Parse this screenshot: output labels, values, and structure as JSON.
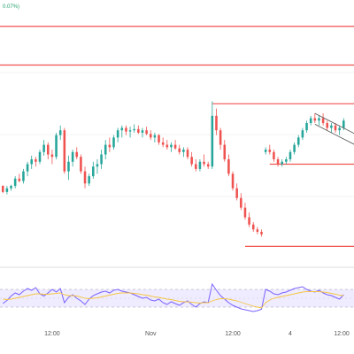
{
  "corner_label": "0.07%)",
  "chart_data": [
    {
      "type": "candlestick",
      "colors": {
        "up": "#26a69a",
        "down": "#ef5350",
        "level": "#ef5350",
        "channel": "#555555",
        "grid": "#e6e6e6"
      },
      "x_ticks": [
        "12:00",
        "Nov",
        "12:00",
        "4",
        "12:00"
      ],
      "ohlc": [
        [
          50,
          50.5,
          44,
          45
        ],
        [
          45,
          50,
          43,
          48
        ],
        [
          48,
          51,
          46,
          50
        ],
        [
          50,
          58,
          48,
          56
        ],
        [
          56,
          60,
          53,
          54
        ],
        [
          54,
          64,
          52,
          62
        ],
        [
          62,
          70,
          58,
          68
        ],
        [
          68,
          75,
          64,
          72
        ],
        [
          72,
          74,
          66,
          70
        ],
        [
          70,
          80,
          68,
          78
        ],
        [
          78,
          88,
          75,
          84
        ],
        [
          84,
          86,
          72,
          76
        ],
        [
          76,
          80,
          68,
          74
        ],
        [
          74,
          94,
          72,
          92
        ],
        [
          92,
          100,
          88,
          96
        ],
        [
          96,
          98,
          60,
          62
        ],
        [
          62,
          75,
          55,
          70
        ],
        [
          70,
          80,
          66,
          78
        ],
        [
          78,
          82,
          72,
          74
        ],
        [
          74,
          76,
          60,
          62
        ],
        [
          62,
          66,
          48,
          52
        ],
        [
          52,
          60,
          50,
          58
        ],
        [
          58,
          70,
          56,
          66
        ],
        [
          66,
          72,
          60,
          68
        ],
        [
          68,
          80,
          64,
          76
        ],
        [
          76,
          88,
          72,
          84
        ],
        [
          84,
          90,
          78,
          82
        ],
        [
          82,
          92,
          80,
          90
        ],
        [
          90,
          98,
          86,
          96
        ],
        [
          96,
          100,
          90,
          98
        ],
        [
          98,
          100,
          92,
          95
        ],
        [
          95,
          99,
          90,
          96
        ],
        [
          96,
          101,
          94,
          97
        ],
        [
          97,
          100,
          93,
          94
        ],
        [
          94,
          98,
          90,
          96
        ],
        [
          96,
          99,
          92,
          93
        ],
        [
          93,
          96,
          88,
          90
        ],
        [
          90,
          94,
          86,
          92
        ],
        [
          92,
          93,
          84,
          86
        ],
        [
          86,
          90,
          82,
          84
        ],
        [
          84,
          88,
          80,
          82
        ],
        [
          82,
          86,
          78,
          84
        ],
        [
          84,
          88,
          80,
          81
        ],
        [
          81,
          84,
          76,
          78
        ],
        [
          78,
          82,
          74,
          80
        ],
        [
          80,
          82,
          72,
          74
        ],
        [
          74,
          78,
          66,
          68
        ],
        [
          68,
          72,
          62,
          64
        ],
        [
          64,
          72,
          62,
          70
        ],
        [
          70,
          76,
          66,
          68
        ],
        [
          68,
          70,
          64,
          66
        ],
        [
          66,
          120,
          64,
          108
        ],
        [
          108,
          114,
          92,
          96
        ],
        [
          96,
          98,
          80,
          84
        ],
        [
          84,
          88,
          70,
          72
        ],
        [
          72,
          76,
          58,
          60
        ],
        [
          60,
          62,
          46,
          48
        ],
        [
          48,
          52,
          38,
          40
        ],
        [
          40,
          44,
          30,
          32
        ],
        [
          32,
          36,
          22,
          24
        ],
        [
          24,
          28,
          16,
          18
        ],
        [
          18,
          20,
          12,
          14
        ],
        [
          14,
          16,
          10,
          12
        ],
        [
          12,
          14,
          8,
          10
        ],
        [
          78,
          82,
          76,
          80
        ],
        [
          80,
          84,
          76,
          78
        ],
        [
          78,
          80,
          70,
          72
        ],
        [
          72,
          74,
          66,
          68
        ],
        [
          68,
          72,
          66,
          70
        ],
        [
          70,
          74,
          68,
          72
        ],
        [
          72,
          80,
          70,
          78
        ],
        [
          78,
          86,
          76,
          84
        ],
        [
          84,
          92,
          82,
          90
        ],
        [
          90,
          98,
          88,
          96
        ],
        [
          96,
          104,
          94,
          102
        ],
        [
          102,
          108,
          100,
          106
        ],
        [
          106,
          110,
          102,
          104
        ],
        [
          104,
          108,
          100,
          106
        ],
        [
          106,
          110,
          100,
          102
        ],
        [
          102,
          104,
          96,
          98
        ],
        [
          98,
          102,
          94,
          100
        ],
        [
          100,
          102,
          94,
          96
        ],
        [
          96,
          100,
          92,
          98
        ],
        [
          98,
          106,
          96,
          104
        ]
      ],
      "levels": [
        {
          "price": 182,
          "x_start": 0
        },
        {
          "price": 150,
          "x_start": 0
        },
        {
          "price": 118,
          "x_start": 51
        },
        {
          "price": 68,
          "x_start": 65
        },
        {
          "price": 0,
          "x_start": 59
        }
      ],
      "channel": {
        "upper": [
          [
            76,
            110
          ],
          [
            84,
            96
          ]
        ],
        "lower": [
          [
            76,
            101
          ],
          [
            84,
            87
          ]
        ]
      },
      "price_range": [
        -10,
        195
      ]
    },
    {
      "type": "line",
      "y_range": [
        0,
        100
      ],
      "bands": [
        30,
        70
      ],
      "series": [
        {
          "color": "#7b61ff",
          "values": [
            38,
            45,
            55,
            62,
            58,
            66,
            72,
            68,
            74,
            60,
            55,
            62,
            70,
            64,
            72,
            40,
            52,
            58,
            50,
            44,
            36,
            48,
            56,
            60,
            64,
            66,
            62,
            68,
            70,
            66,
            64,
            62,
            58,
            54,
            50,
            52,
            46,
            44,
            48,
            40,
            36,
            42,
            38,
            34,
            40,
            44,
            36,
            30,
            38,
            42,
            40,
            82,
            68,
            56,
            48,
            40,
            34,
            30,
            26,
            24,
            22,
            20,
            22,
            25,
            70,
            66,
            60,
            58,
            62,
            64,
            68,
            72,
            74,
            76,
            70,
            66,
            64,
            68,
            62,
            58,
            56,
            52,
            48,
            58
          ]
        },
        {
          "color": "#f4c542",
          "values": [
            48,
            47,
            48,
            50,
            52,
            54,
            56,
            58,
            60,
            60,
            59,
            59,
            60,
            61,
            62,
            58,
            56,
            56,
            55,
            53,
            50,
            49,
            50,
            51,
            53,
            55,
            57,
            59,
            61,
            62,
            62,
            62,
            61,
            60,
            58,
            57,
            55,
            53,
            52,
            50,
            48,
            47,
            45,
            43,
            42,
            42,
            41,
            40,
            39,
            40,
            40,
            44,
            47,
            49,
            49,
            48,
            46,
            44,
            41,
            38,
            35,
            32,
            30,
            28,
            40,
            46,
            50,
            52,
            54,
            56,
            58,
            60,
            62,
            64,
            65,
            65,
            65,
            65,
            64,
            63,
            61,
            59,
            57,
            56
          ]
        }
      ]
    }
  ]
}
